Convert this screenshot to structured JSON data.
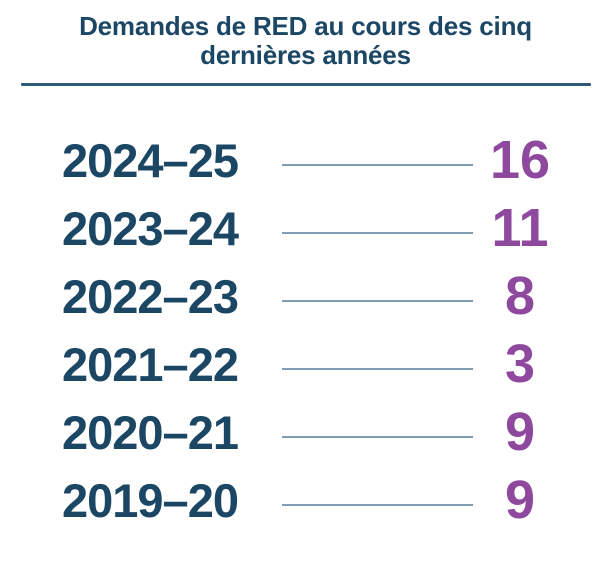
{
  "title": {
    "line1": "Demandes de RED au cours des cinq",
    "line2": "dernières années"
  },
  "colors": {
    "background": "#ffffff",
    "navy": "#1b4765",
    "purple": "#8e489e",
    "leader_line": "#7f9db7",
    "title_rule": "#2d5a78"
  },
  "chart_data": {
    "type": "table",
    "title": "Demandes de RED au cours des cinq dernières années",
    "categories": [
      "2024–25",
      "2023–24",
      "2022–23",
      "2021–22",
      "2020–21",
      "2019–20"
    ],
    "values": [
      16,
      11,
      8,
      3,
      9,
      9
    ],
    "category_color": "#1b4765",
    "value_color": "#8e489e",
    "legend": "none",
    "grid": "off",
    "layout": "category label, leader line, value — one row per year, newest first"
  }
}
